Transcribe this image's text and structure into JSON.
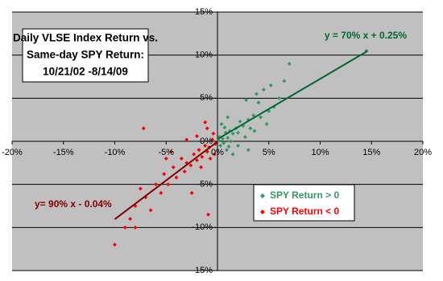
{
  "chart_data": {
    "type": "scatter",
    "title": [
      "Daily VLSE Index Return vs.",
      "Same-day SPY Return:",
      "10/21/02 -8/14/09"
    ],
    "xlim": [
      -20,
      20
    ],
    "ylim": [
      -15,
      15
    ],
    "xticks": [
      {
        "value": -20,
        "label": "-20%"
      },
      {
        "value": -15,
        "label": "-15%"
      },
      {
        "value": -10,
        "label": "-10%"
      },
      {
        "value": -5,
        "label": "-5%"
      },
      {
        "value": 0,
        "label": "0%"
      },
      {
        "value": 5,
        "label": "5%"
      },
      {
        "value": 10,
        "label": "10%"
      },
      {
        "value": 15,
        "label": "15%"
      },
      {
        "value": 20,
        "label": "20%"
      }
    ],
    "yticks": [
      {
        "value": -15,
        "label": "-15%"
      },
      {
        "value": -10,
        "label": "-10%"
      },
      {
        "value": -5,
        "label": "-5%"
      },
      {
        "value": 0,
        "label": "0%"
      },
      {
        "value": 5,
        "label": "5%"
      },
      {
        "value": 10,
        "label": "10%"
      },
      {
        "value": 15,
        "label": "15%"
      }
    ],
    "grid": true,
    "series": [
      {
        "name": "SPY Return > 0",
        "color": "#339966",
        "x": [
          0.2,
          0.5,
          0.8,
          1.0,
          1.2,
          1.5,
          0.3,
          0.6,
          1.8,
          2.0,
          2.2,
          2.5,
          3.0,
          3.2,
          3.5,
          4.0,
          4.2,
          3.8,
          2.8,
          5.0,
          5.5,
          6.0,
          6.5,
          7.0,
          5.2,
          4.5,
          3.0,
          1.5,
          0.9,
          2.0,
          14.5,
          0.4,
          1.0,
          1.3,
          2.7,
          0.1,
          0.7,
          3.6,
          4.8,
          1.1
        ],
        "values": [
          0.5,
          0.3,
          1.0,
          0.4,
          1.2,
          0.9,
          -0.5,
          -0.2,
          1.5,
          1.0,
          2.3,
          1.8,
          2.5,
          1.5,
          3.0,
          4.5,
          2.8,
          5.5,
          4.8,
          3.5,
          4.0,
          5.0,
          7.0,
          9.0,
          6.5,
          6.0,
          -1.0,
          -1.5,
          -1.0,
          -0.5,
          10.5,
          2.0,
          2.8,
          0.0,
          0.5,
          0.1,
          1.6,
          1.2,
          2.0,
          -0.6
        ]
      },
      {
        "name": "SPY Return < 0",
        "color": "#ff0000",
        "x": [
          -0.2,
          -0.5,
          -0.8,
          -1.0,
          -1.2,
          -1.5,
          -1.8,
          -2.0,
          -2.3,
          -2.6,
          -3.0,
          -3.2,
          -3.5,
          -4.0,
          -4.3,
          -4.8,
          -5.2,
          -5.5,
          -6.0,
          -7.0,
          -7.5,
          -8.0,
          -8.5,
          -9.0,
          -8.0,
          -10.0,
          -6.5,
          -1.0,
          -1.2,
          -0.4,
          -7.2,
          -3.0,
          -2.0,
          -0.7,
          -0.3,
          -0.9,
          -2.5,
          -4.5,
          -1.6,
          -5.0
        ],
        "values": [
          -0.3,
          0.2,
          -0.7,
          -1.2,
          -0.5,
          -1.8,
          -1.0,
          -2.2,
          -1.5,
          -2.8,
          -2.5,
          -3.5,
          -2.0,
          -4.2,
          -3.0,
          -5.0,
          -3.8,
          -6.0,
          -5.0,
          -6.5,
          -5.5,
          -7.5,
          -9.0,
          -10.0,
          -10.0,
          -12.0,
          -8.0,
          1.5,
          2.2,
          0.9,
          1.5,
          0.2,
          0.6,
          -2.0,
          -1.5,
          -8.5,
          -6.0,
          -1.2,
          -3.0,
          -2.0
        ]
      }
    ],
    "trendlines": [
      {
        "label": "y = 70% x + 0.25%",
        "color": "#006633",
        "slope": 0.7,
        "intercept": 0.25,
        "xrange": [
          0,
          14.6
        ]
      },
      {
        "label": "y= 90% x - 0.04%",
        "color": "#800000",
        "slope": 0.9,
        "intercept": -0.04,
        "xrange": [
          -10,
          0
        ]
      }
    ]
  }
}
